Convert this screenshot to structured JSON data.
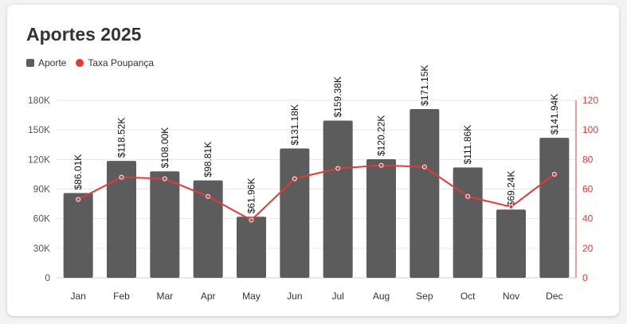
{
  "chart_data": {
    "type": "bar",
    "title": "Aportes 2025",
    "categories": [
      "Jan",
      "Feb",
      "Mar",
      "Apr",
      "May",
      "Jun",
      "Jul",
      "Aug",
      "Sep",
      "Oct",
      "Nov",
      "Dec"
    ],
    "series": [
      {
        "name": "Aporte",
        "type": "bar",
        "axis": "left",
        "color": "#5c5c5c",
        "values": [
          86010,
          118520,
          108000,
          98810,
          61960,
          131180,
          159380,
          120220,
          171150,
          111860,
          69240,
          141940
        ],
        "labels": [
          "$86.01K",
          "$118.52K",
          "$108.00K",
          "$98.81K",
          "$61.96K",
          "$131.18K",
          "$159.38K",
          "$120.22K",
          "$171.15K",
          "$111.86K",
          "$69.24K",
          "$141.94K"
        ]
      },
      {
        "name": "Taxa Poupança",
        "type": "line",
        "axis": "right",
        "color": "#e53935",
        "values": [
          53,
          68,
          67,
          55,
          39,
          67,
          74,
          76,
          75,
          55,
          48,
          70
        ]
      }
    ],
    "y_left": {
      "min": 0,
      "max": 180000,
      "ticks": [
        0,
        30000,
        60000,
        90000,
        120000,
        150000,
        180000
      ],
      "tick_labels": [
        "0",
        "30K",
        "60K",
        "90K",
        "120K",
        "150K",
        "180K"
      ]
    },
    "y_right": {
      "min": 0,
      "max": 120,
      "ticks": [
        0,
        20,
        40,
        60,
        80,
        100,
        120
      ],
      "tick_labels": [
        "0",
        "20",
        "40",
        "60",
        "80",
        "100",
        "120"
      ],
      "color": "#e53935"
    },
    "grid": true,
    "legend_position": "top-left"
  }
}
